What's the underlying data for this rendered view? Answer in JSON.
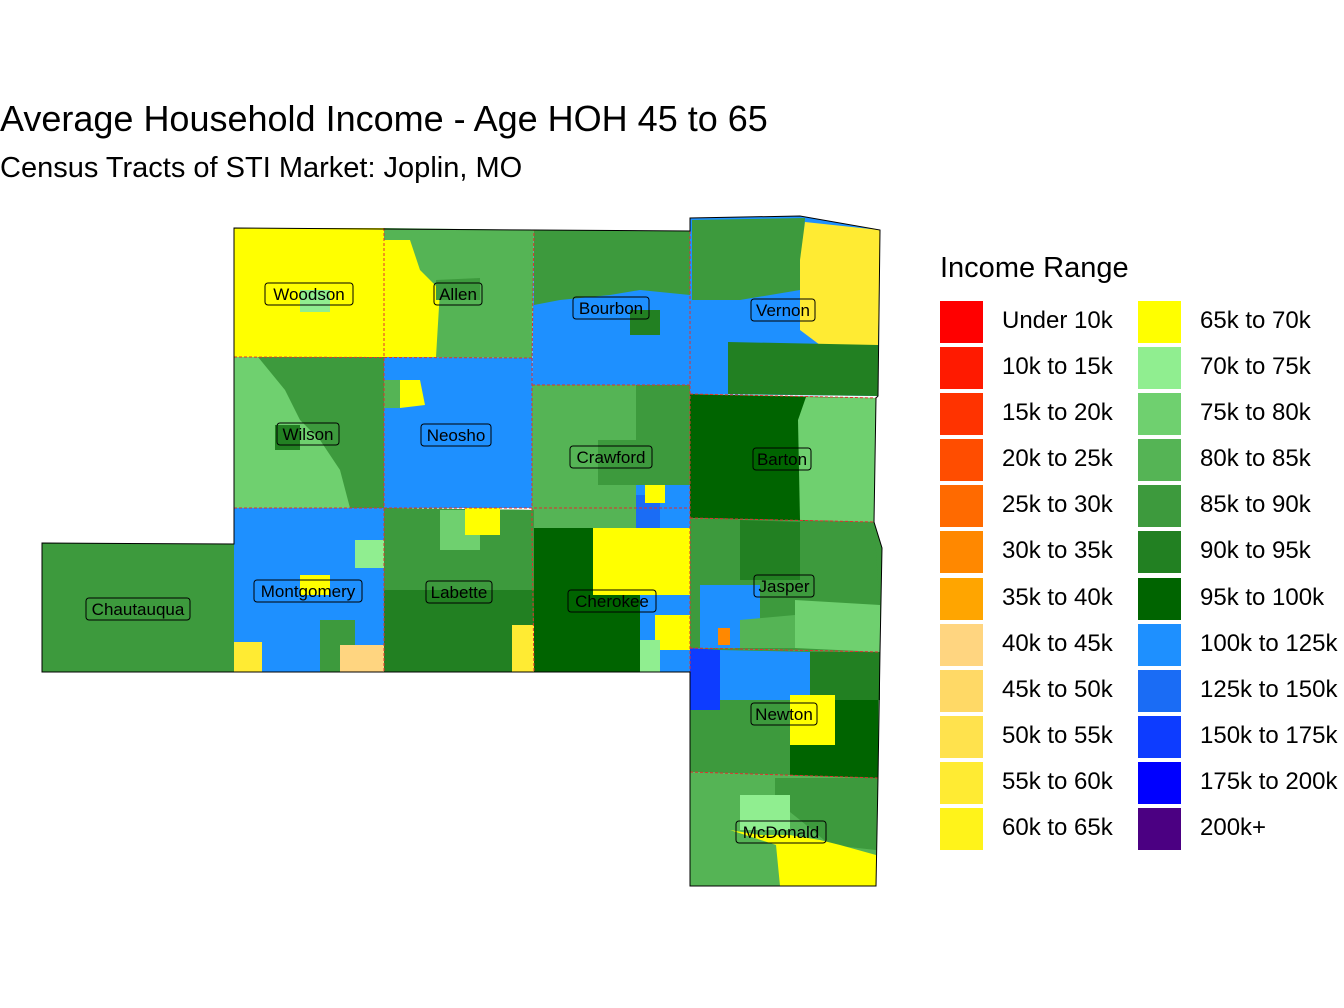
{
  "title": "Average Household Income - Age HOH 45 to 65",
  "subtitle": "Census Tracts of STI Market: Joplin, MO",
  "legend": {
    "title": "Income Range",
    "items": [
      {
        "label": "Under 10k",
        "color": "#ff0000"
      },
      {
        "label": "10k to 15k",
        "color": "#ff1a00"
      },
      {
        "label": "15k to 20k",
        "color": "#ff3300"
      },
      {
        "label": "20k to 25k",
        "color": "#ff4d00"
      },
      {
        "label": "25k to 30k",
        "color": "#ff6a00"
      },
      {
        "label": "30k to 35k",
        "color": "#ff8800"
      },
      {
        "label": "35k to 40k",
        "color": "#ffa500"
      },
      {
        "label": "40k to 45k",
        "color": "#ffd580"
      },
      {
        "label": "45k to 50k",
        "color": "#ffd966"
      },
      {
        "label": "50k to 55k",
        "color": "#ffe24d"
      },
      {
        "label": "55k to 60k",
        "color": "#ffeb33"
      },
      {
        "label": "60k to 65k",
        "color": "#fff31a"
      },
      {
        "label": "65k to 70k",
        "color": "#ffff00"
      },
      {
        "label": "70k to 75k",
        "color": "#90ee90"
      },
      {
        "label": "75k to 80k",
        "color": "#6fd06f"
      },
      {
        "label": "80k to 85k",
        "color": "#55b455"
      },
      {
        "label": "85k to 90k",
        "color": "#3d9a3d"
      },
      {
        "label": "90k to 95k",
        "color": "#228022"
      },
      {
        "label": "95k to 100k",
        "color": "#006400"
      },
      {
        "label": "100k to 125k",
        "color": "#1e90ff"
      },
      {
        "label": "125k to 150k",
        "color": "#1a6cf5"
      },
      {
        "label": "150k to 175k",
        "color": "#0d3cff"
      },
      {
        "label": "175k to 200k",
        "color": "#0000ff"
      },
      {
        "label": "200k+",
        "color": "#4b0082"
      }
    ]
  },
  "counties": [
    {
      "name": "Woodson",
      "fill": "#ffff00"
    },
    {
      "name": "Allen",
      "fill": "#55b455"
    },
    {
      "name": "Bourbon",
      "fill": "#1e90ff"
    },
    {
      "name": "Vernon",
      "fill": "#1e90ff"
    },
    {
      "name": "Wilson",
      "fill": "#6fd06f"
    },
    {
      "name": "Neosho",
      "fill": "#1e90ff"
    },
    {
      "name": "Crawford",
      "fill": "#55b455"
    },
    {
      "name": "Barton",
      "fill": "#006400"
    },
    {
      "name": "Chautauqua",
      "fill": "#3d9a3d"
    },
    {
      "name": "Montgomery",
      "fill": "#1e90ff"
    },
    {
      "name": "Labette",
      "fill": "#228022"
    },
    {
      "name": "Cherokee",
      "fill": "#006400"
    },
    {
      "name": "Jasper",
      "fill": "#3d9a3d"
    },
    {
      "name": "Newton",
      "fill": "#3d9a3d"
    },
    {
      "name": "McDonald",
      "fill": "#55b455"
    }
  ]
}
